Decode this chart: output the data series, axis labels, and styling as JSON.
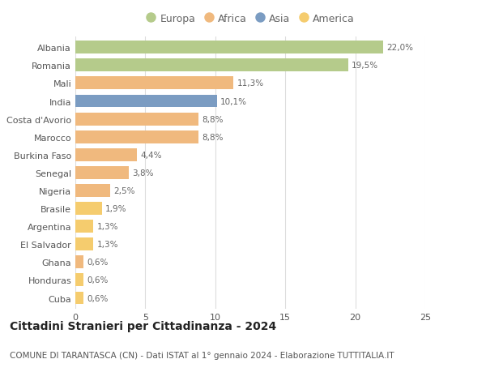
{
  "countries": [
    "Albania",
    "Romania",
    "Mali",
    "India",
    "Costa d'Avorio",
    "Marocco",
    "Burkina Faso",
    "Senegal",
    "Nigeria",
    "Brasile",
    "Argentina",
    "El Salvador",
    "Ghana",
    "Honduras",
    "Cuba"
  ],
  "values": [
    22.0,
    19.5,
    11.3,
    10.1,
    8.8,
    8.8,
    4.4,
    3.8,
    2.5,
    1.9,
    1.3,
    1.3,
    0.6,
    0.6,
    0.6
  ],
  "labels": [
    "22,0%",
    "19,5%",
    "11,3%",
    "10,1%",
    "8,8%",
    "8,8%",
    "4,4%",
    "3,8%",
    "2,5%",
    "1,9%",
    "1,3%",
    "1,3%",
    "0,6%",
    "0,6%",
    "0,6%"
  ],
  "continents": [
    "Europa",
    "Europa",
    "Africa",
    "Asia",
    "Africa",
    "Africa",
    "Africa",
    "Africa",
    "Africa",
    "America",
    "America",
    "America",
    "Africa",
    "America",
    "America"
  ],
  "colors": {
    "Europa": "#b5cb8b",
    "Africa": "#f0b97e",
    "Asia": "#7b9cc2",
    "America": "#f5cc6e"
  },
  "legend_order": [
    "Europa",
    "Africa",
    "Asia",
    "America"
  ],
  "title": "Cittadini Stranieri per Cittadinanza - 2024",
  "subtitle": "COMUNE DI TARANTASCA (CN) - Dati ISTAT al 1° gennaio 2024 - Elaborazione TUTTITALIA.IT",
  "xlim": [
    0,
    25
  ],
  "xticks": [
    0,
    5,
    10,
    15,
    20,
    25
  ],
  "bg_color": "#ffffff",
  "grid_color": "#dddddd",
  "bar_height": 0.72,
  "label_fontsize": 7.5,
  "title_fontsize": 10,
  "subtitle_fontsize": 7.5,
  "ytick_fontsize": 8,
  "xtick_fontsize": 8,
  "legend_fontsize": 9
}
